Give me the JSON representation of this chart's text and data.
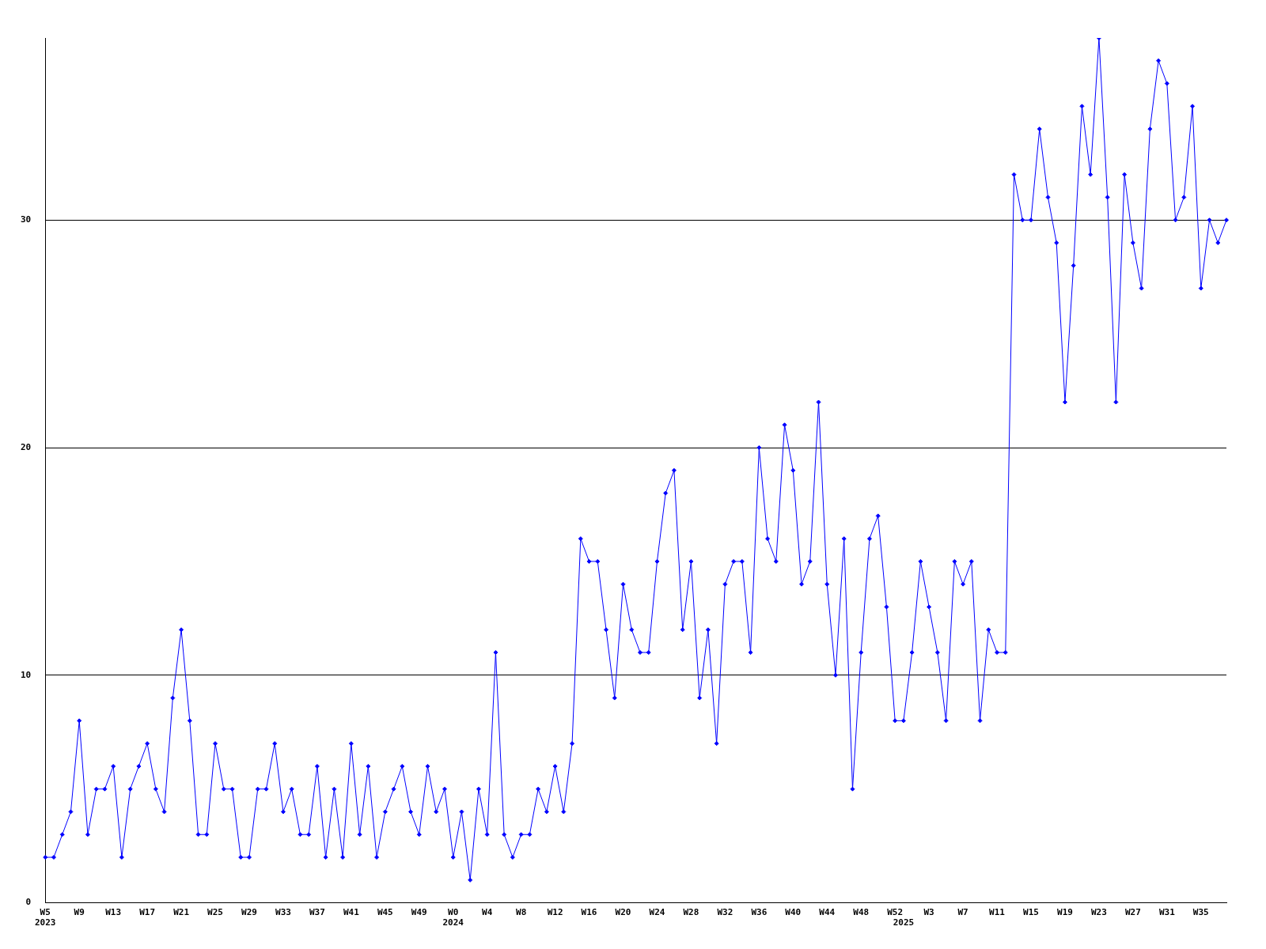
{
  "chart_data": {
    "type": "line",
    "categories": [
      "W5\n2023",
      null,
      null,
      null,
      "W9",
      null,
      null,
      null,
      "W13",
      null,
      null,
      null,
      "W17",
      null,
      null,
      null,
      "W21",
      null,
      null,
      null,
      "W25",
      null,
      null,
      null,
      "W29",
      null,
      null,
      null,
      "W33",
      null,
      null,
      null,
      "W37",
      null,
      null,
      null,
      "W41",
      null,
      null,
      null,
      "W45",
      null,
      null,
      null,
      "W49",
      null,
      null,
      null,
      "W0\n2024",
      null,
      null,
      null,
      "W4",
      null,
      null,
      null,
      "W8",
      null,
      null,
      null,
      "W12",
      null,
      null,
      null,
      "W16",
      null,
      null,
      null,
      "W20",
      null,
      null,
      null,
      "W24",
      null,
      null,
      null,
      "W28",
      null,
      null,
      null,
      "W32",
      null,
      null,
      null,
      "W36",
      null,
      null,
      null,
      "W40",
      null,
      null,
      null,
      "W44",
      null,
      null,
      null,
      "W48",
      null,
      null,
      null,
      "W52",
      "\n2025",
      null,
      null,
      "W3",
      null,
      null,
      null,
      "W7",
      null,
      null,
      null,
      "W11",
      null,
      null,
      null,
      "W15",
      null,
      null,
      null,
      "W19",
      null,
      null,
      null,
      "W23",
      null,
      null,
      null,
      "W27",
      null,
      null,
      null,
      "W31",
      null,
      null,
      null,
      "W35",
      null,
      null,
      null
    ],
    "series": [
      {
        "color": "#0000ff",
        "values": [
          2,
          2,
          3,
          4,
          8,
          3,
          5,
          5,
          6,
          2,
          5,
          6,
          7,
          5,
          4,
          9,
          12,
          8,
          3,
          3,
          7,
          5,
          5,
          2,
          2,
          5,
          5,
          7,
          4,
          5,
          3,
          3,
          6,
          2,
          5,
          2,
          7,
          3,
          6,
          2,
          4,
          5,
          6,
          4,
          3,
          6,
          4,
          5,
          2,
          4,
          1,
          5,
          3,
          11,
          3,
          2,
          3,
          3,
          5,
          4,
          6,
          4,
          7,
          16,
          15,
          15,
          12,
          9,
          14,
          12,
          11,
          11,
          15,
          18,
          19,
          12,
          15,
          9,
          12,
          7,
          14,
          15,
          15,
          11,
          20,
          16,
          15,
          21,
          19,
          14,
          15,
          22,
          14,
          10,
          16,
          5,
          11,
          16,
          17,
          13,
          8,
          8,
          11,
          15,
          13,
          11,
          8,
          15,
          14,
          15,
          8,
          12,
          11,
          11,
          32,
          30,
          30,
          34,
          31,
          29,
          22,
          28,
          35,
          32,
          38,
          31,
          22,
          32,
          29,
          27,
          34,
          37,
          36,
          30,
          31,
          35,
          27,
          30,
          29,
          30
        ]
      }
    ],
    "ylim": [
      0,
      38
    ],
    "yticks": [
      0,
      10,
      20,
      30
    ],
    "grid": "y",
    "marker": "diamond",
    "line_style": "solid"
  }
}
